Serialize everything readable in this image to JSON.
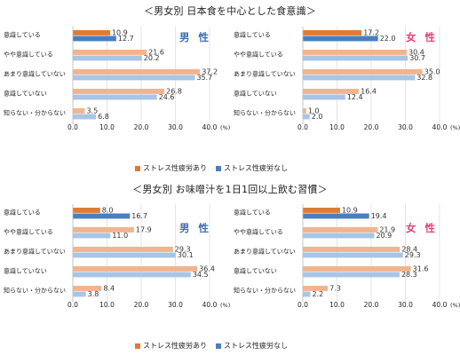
{
  "sections": [
    {
      "title": "＜男女別 日本食を中心とした食意識＞"
    },
    {
      "title": "＜男女別 お味噌汁を1日1回以上飲む習慣＞"
    }
  ],
  "legend": {
    "series1": "ストレス性疲労あり",
    "series2": "ストレス性疲労なし"
  },
  "colors": {
    "series1": "#e07b33",
    "series1_light": "#f2b48c",
    "series2": "#4a7fbf",
    "series2_light": "#a9c5e6"
  },
  "chart_data": [
    {
      "type": "bar",
      "orientation": "horizontal",
      "section": 0,
      "panel_label": "男 性",
      "categories": [
        "意識している",
        "やや意識している",
        "あまり意識していない",
        "意識していない",
        "知らない・分からない"
      ],
      "series": [
        {
          "name": "ストレス性疲労あり",
          "values": [
            10.9,
            21.6,
            37.2,
            26.8,
            3.5
          ]
        },
        {
          "name": "ストレス性疲労なし",
          "values": [
            12.7,
            20.2,
            35.7,
            24.6,
            6.8
          ]
        }
      ],
      "xlim": [
        0,
        40
      ],
      "xticks": [
        "0.0",
        "10.0",
        "20.0",
        "30.0",
        "40.0"
      ],
      "unit": "(%)"
    },
    {
      "type": "bar",
      "orientation": "horizontal",
      "section": 0,
      "panel_label": "女 性",
      "categories": [
        "意識している",
        "やや意識している",
        "あまり意識していない",
        "意識していない",
        "知らない・分からない"
      ],
      "series": [
        {
          "name": "ストレス性疲労あり",
          "values": [
            17.2,
            30.4,
            35.0,
            16.4,
            1.0
          ]
        },
        {
          "name": "ストレス性疲労なし",
          "values": [
            22.0,
            30.7,
            32.8,
            12.4,
            2.0
          ]
        }
      ],
      "xlim": [
        0,
        40
      ],
      "xticks": [
        "0.0",
        "10.0",
        "20.0",
        "30.0",
        "40.0"
      ],
      "unit": "(%)"
    },
    {
      "type": "bar",
      "orientation": "horizontal",
      "section": 1,
      "panel_label": "男 性",
      "categories": [
        "意識している",
        "やや意識している",
        "あまり意識していない",
        "意識していない",
        "知らない・分からない"
      ],
      "series": [
        {
          "name": "ストレス性疲労あり",
          "values": [
            8.0,
            17.9,
            29.3,
            36.4,
            8.4
          ]
        },
        {
          "name": "ストレス性疲労なし",
          "values": [
            16.7,
            11.0,
            30.1,
            34.5,
            3.8
          ]
        }
      ],
      "xlim": [
        0,
        40
      ],
      "xticks": [
        "0.0",
        "10.0",
        "20.0",
        "30.0",
        "40.0"
      ],
      "unit": "(%)"
    },
    {
      "type": "bar",
      "orientation": "horizontal",
      "section": 1,
      "panel_label": "女 性",
      "categories": [
        "意識している",
        "やや意識している",
        "あまり意識していない",
        "意識していない",
        "知らない・分からない"
      ],
      "series": [
        {
          "name": "ストレス性疲労あり",
          "values": [
            10.9,
            21.9,
            28.4,
            31.6,
            7.3
          ]
        },
        {
          "name": "ストレス性疲労なし",
          "values": [
            19.4,
            20.9,
            29.3,
            28.3,
            2.2
          ]
        }
      ],
      "xlim": [
        0,
        40
      ],
      "xticks": [
        "0.0",
        "10.0",
        "20.0",
        "30.0",
        "40.0"
      ],
      "unit": "(%)"
    }
  ]
}
